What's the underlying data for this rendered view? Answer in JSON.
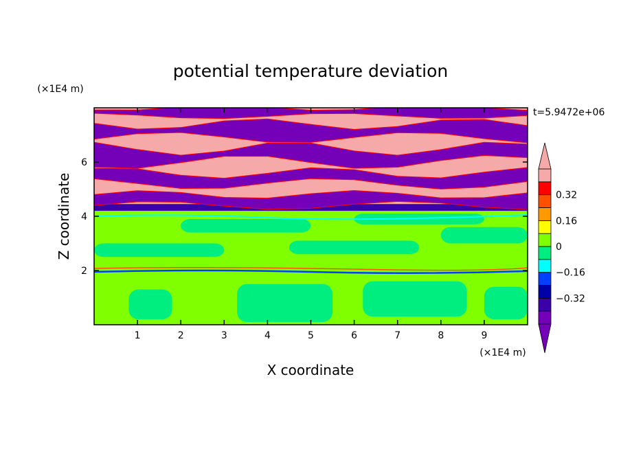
{
  "chart_data": {
    "type": "heatmap",
    "title": "potential temperature deviation",
    "xlabel": "X coordinate",
    "ylabel": "Z coordinate",
    "x_unit": "(×1E4 m)",
    "y_unit": "(×1E4 m)",
    "time_label": "t=5.9472e+06",
    "xlim": [
      0,
      10
    ],
    "ylim": [
      0,
      8
    ],
    "x_ticks": [
      "1",
      "2",
      "3",
      "4",
      "5",
      "6",
      "7",
      "8",
      "9"
    ],
    "y_ticks": [
      "2",
      "4",
      "6"
    ],
    "colorbar": {
      "levels": [
        -0.48,
        -0.4,
        -0.32,
        -0.24,
        -0.16,
        -0.08,
        0,
        0.08,
        0.16,
        0.24,
        0.32,
        0.4,
        0.48
      ],
      "colors": [
        "#7400b8",
        "#3c00a8",
        "#0000a8",
        "#0040ff",
        "#00ffff",
        "#00ee80",
        "#80ff00",
        "#ffff00",
        "#ff9900",
        "#ff5000",
        "#ff0000",
        "#f5a9a9"
      ],
      "labels": [
        "0.32",
        "0.16",
        "0",
        "-0.16",
        "-0.32"
      ],
      "extend": "both"
    },
    "description_regions": {
      "upper_band_z": [
        4.2,
        8.0
      ],
      "upper_band_values": "alternating ≈ -0.5 (purple) and ≈ +0.5 (pink) layers",
      "lower_band_z": [
        0,
        4.2
      ],
      "lower_band_values": "mostly -0.08 to 0.08 (green), thin ±0.3 line near z=2"
    }
  }
}
